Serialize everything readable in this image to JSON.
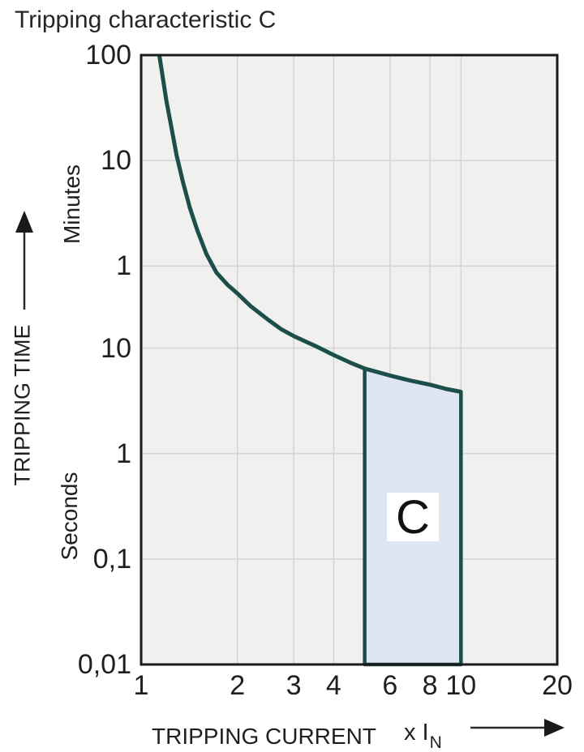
{
  "title": "Tripping characteristic C",
  "colors": {
    "curve": "#1d4f4a",
    "region_fill": "#dee5f3",
    "plot_bg": "#f0f0ee",
    "grid": "#d5d5d6",
    "border": "#1a1a1a",
    "text": "#1f1f1f",
    "arrow": "#2a2a2a"
  },
  "y_axis": {
    "title": "TRIPPING TIME",
    "minutes_label": "Minutes",
    "seconds_label": "Seconds",
    "ticks": [
      {
        "label": "100",
        "t": 6000,
        "grid": false
      },
      {
        "label": "10",
        "t": 600,
        "grid": true
      },
      {
        "label": "1",
        "t": 60,
        "grid": true
      },
      {
        "label": "10",
        "t": 10,
        "grid": true
      },
      {
        "label": "1",
        "t": 1,
        "grid": true
      },
      {
        "label": "0,1",
        "t": 0.1,
        "grid": true
      },
      {
        "label": "0,01",
        "t": 0.01,
        "grid": false
      }
    ]
  },
  "x_axis": {
    "title": "TRIPPING CURRENT",
    "unit_prefix": "x I",
    "unit_sub": "N",
    "ticks": [
      {
        "label": "1",
        "v": 1,
        "grid": false
      },
      {
        "label": "2",
        "v": 2,
        "grid": true
      },
      {
        "label": "3",
        "v": 3,
        "grid": true
      },
      {
        "label": "4",
        "v": 4,
        "grid": true
      },
      {
        "label": "6",
        "v": 6,
        "grid": true
      },
      {
        "label": "8",
        "v": 8,
        "grid": true
      },
      {
        "label": "10",
        "v": 10,
        "grid": true
      },
      {
        "label": "20",
        "v": 20,
        "grid": false
      }
    ]
  },
  "chart_data": {
    "type": "line",
    "title": "Tripping characteristic C",
    "xlabel": "TRIPPING CURRENT (x IN)",
    "ylabel": "TRIPPING TIME",
    "x_scale": "log",
    "y_scale": "log",
    "grid": true,
    "x_range": [
      1,
      20
    ],
    "y_range_seconds": [
      0.01,
      6000
    ],
    "y_units": "minutes above 60 s, seconds below",
    "curve_name": "C tripping curve",
    "curve_points": [
      [
        1.14,
        6000
      ],
      [
        1.17,
        3600
      ],
      [
        1.2,
        2200
      ],
      [
        1.24,
        1300
      ],
      [
        1.29,
        680
      ],
      [
        1.35,
        380
      ],
      [
        1.42,
        215
      ],
      [
        1.5,
        130
      ],
      [
        1.6,
        78
      ],
      [
        1.72,
        52
      ],
      [
        1.86,
        40
      ],
      [
        2.0,
        33
      ],
      [
        2.2,
        25
      ],
      [
        2.5,
        18.5
      ],
      [
        2.75,
        15
      ],
      [
        3.0,
        13
      ],
      [
        3.5,
        10.5
      ],
      [
        4.0,
        8.6
      ],
      [
        4.5,
        7.3
      ],
      [
        5.0,
        6.4
      ],
      [
        6.0,
        5.5
      ],
      [
        7.0,
        4.9
      ],
      [
        8.0,
        4.5
      ],
      [
        9.0,
        4.1
      ],
      [
        10.0,
        3.85
      ]
    ],
    "region": {
      "label": "C",
      "x_start": 5,
      "x_end": 10,
      "t_bottom": 0.01,
      "label_center": {
        "x": 7.07,
        "t": 0.25
      }
    }
  }
}
